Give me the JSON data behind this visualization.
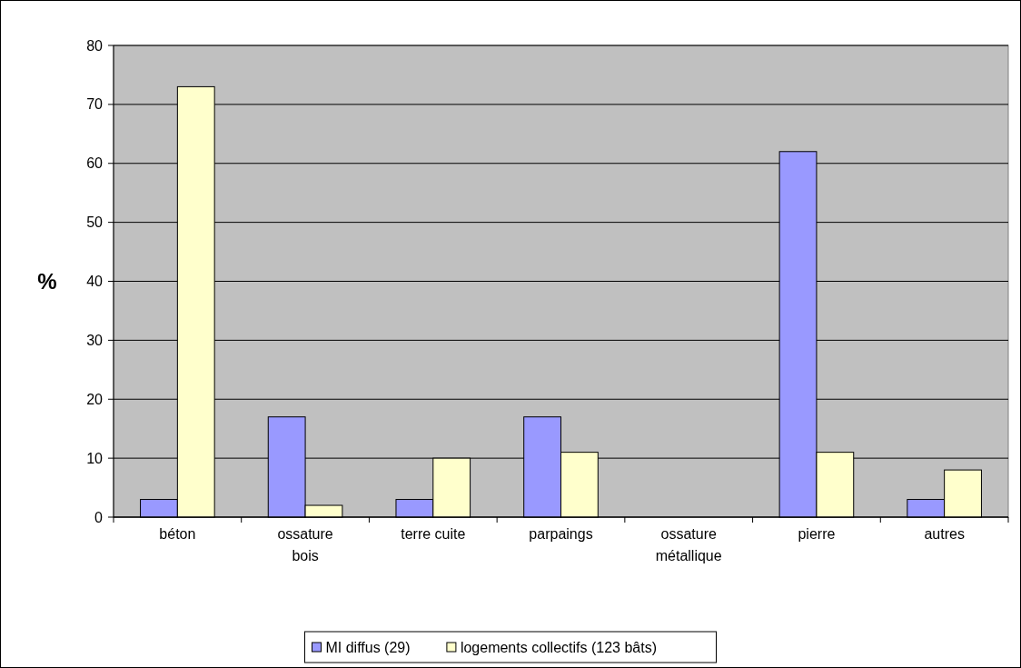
{
  "chart_data": {
    "type": "bar",
    "ylabel": "%",
    "categories": [
      "béton",
      "ossature bois",
      "terre cuite",
      "parpaings",
      "ossature métallique",
      "pierre",
      "autres"
    ],
    "series": [
      {
        "name": "MI diffus (29)",
        "color": "#9999ff",
        "values": [
          3,
          17,
          3,
          17,
          0,
          62,
          3
        ]
      },
      {
        "name": "logements collectifs (123 bâts)",
        "color": "#ffffcc",
        "values": [
          73,
          2,
          10,
          11,
          0,
          11,
          8
        ]
      }
    ],
    "ylim": [
      0,
      80
    ],
    "yticks": [
      0,
      10,
      20,
      30,
      40,
      50,
      60,
      70,
      80
    ],
    "grid": "y",
    "legend": "bottom"
  }
}
